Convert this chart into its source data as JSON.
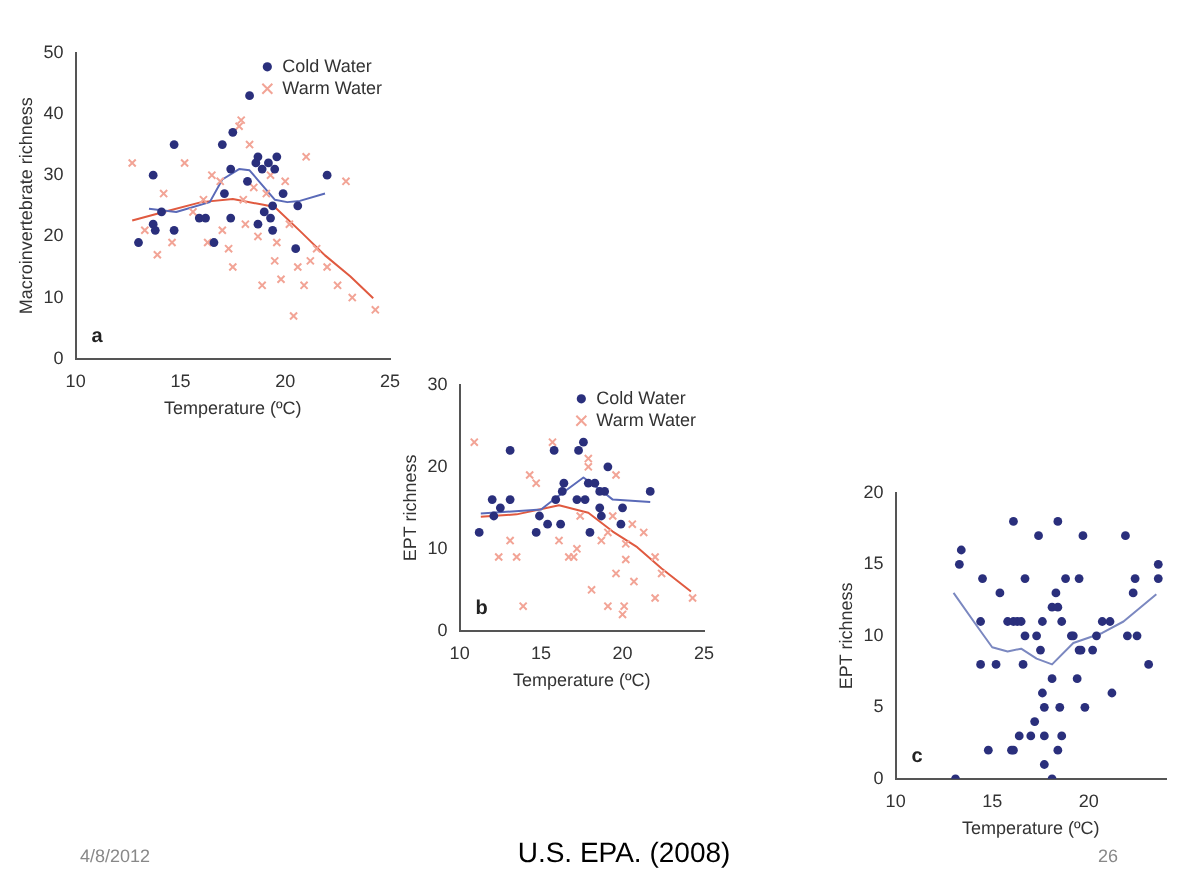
{
  "chart_data": [
    {
      "type": "scatter",
      "xlabel": "Temperature (ºC)",
      "ylabel": "Macroinvertebrate richness",
      "xlim": [
        10,
        25
      ],
      "xticks": [
        10,
        15,
        20,
        25
      ],
      "ylim": [
        0,
        50
      ],
      "yticks": [
        0,
        10,
        20,
        30,
        40,
        50
      ],
      "legend": "top right",
      "annotations": [
        "a"
      ],
      "series": [
        {
          "name": "Cold Water",
          "type": "scatter",
          "marker": "circle",
          "color": "#2a2f7c",
          "x": [
            13.0,
            13.7,
            13.7,
            13.8,
            14.1,
            14.7,
            14.7,
            15.9,
            16.2,
            16.6,
            17.0,
            17.1,
            17.4,
            17.5,
            17.4,
            18.2,
            18.3,
            18.6,
            18.7,
            18.7,
            18.9,
            19.0,
            19.2,
            19.3,
            19.4,
            19.4,
            19.5,
            19.6,
            19.9,
            20.5,
            20.6,
            22.0
          ],
          "values": [
            19,
            30,
            22,
            21,
            24,
            35,
            21,
            23,
            23,
            19,
            35,
            27,
            31,
            37,
            23,
            29,
            43,
            32,
            33,
            22,
            31,
            24,
            32,
            23,
            25,
            21,
            31,
            33,
            27,
            18,
            25,
            30
          ]
        },
        {
          "name": "Warm Water",
          "type": "scatter",
          "marker": "cross",
          "color": "#f2a496",
          "x": [
            12.7,
            13.3,
            13.9,
            14.2,
            14.6,
            15.2,
            15.6,
            16.1,
            16.3,
            16.5,
            17.0,
            17.3,
            17.5,
            17.8,
            17.9,
            18.0,
            18.3,
            18.5,
            18.7,
            18.9,
            19.1,
            19.3,
            19.5,
            19.6,
            19.8,
            20.0,
            20.2,
            20.4,
            20.6,
            20.9,
            21.2,
            21.5,
            22.0,
            22.5,
            22.9,
            23.2,
            24.3,
            21.0,
            16.9,
            18.1
          ],
          "values": [
            32,
            21,
            17,
            27,
            19,
            32,
            24,
            26,
            19,
            30,
            21,
            18,
            15,
            38,
            39,
            26,
            35,
            28,
            20,
            12,
            27,
            30,
            16,
            19,
            13,
            29,
            22,
            7,
            15,
            12,
            16,
            18,
            15,
            12,
            29,
            10,
            8,
            33,
            29,
            22
          ]
        },
        {
          "type": "line",
          "marker": "none",
          "color": "#5a6ab8",
          "x": [
            13.5,
            14.8,
            16.4,
            17.0,
            17.8,
            18.3,
            18.8,
            19.5,
            20.1,
            20.7,
            21.9
          ],
          "values": [
            24.5,
            24,
            25.6,
            29.3,
            31,
            30.8,
            28.8,
            26,
            25.6,
            25.8,
            27
          ]
        },
        {
          "type": "line",
          "marker": "none",
          "color": "#e05a40",
          "x": [
            12.7,
            14.2,
            16.0,
            17.5,
            18.9,
            19.5,
            20.7,
            21.9,
            23.1,
            24.2
          ],
          "values": [
            22.6,
            24,
            25.6,
            26.1,
            25.2,
            24.8,
            20.9,
            16.9,
            13.5,
            9.9
          ]
        }
      ]
    },
    {
      "type": "scatter",
      "xlabel": "Temperature (ºC)",
      "ylabel": "EPT richness",
      "xlim": [
        10,
        25
      ],
      "xticks": [
        10,
        15,
        20,
        25
      ],
      "ylim": [
        0,
        30
      ],
      "yticks": [
        0,
        10,
        20,
        30
      ],
      "legend": "top right",
      "annotations": [
        "b"
      ],
      "series": [
        {
          "name": "Cold Water",
          "type": "scatter",
          "marker": "circle",
          "color": "#2a2f7c",
          "x": [
            11.2,
            12.0,
            12.1,
            12.5,
            13.1,
            13.1,
            14.7,
            14.9,
            15.4,
            15.8,
            15.9,
            16.2,
            16.3,
            16.4,
            17.3,
            17.6,
            17.2,
            17.7,
            17.9,
            18.0,
            18.3,
            18.6,
            18.6,
            18.7,
            18.9,
            19.1,
            19.9,
            20.0,
            21.7
          ],
          "values": [
            12,
            16,
            14,
            15,
            22,
            16,
            12,
            14,
            13,
            22,
            16,
            13,
            17,
            18,
            22,
            23,
            16,
            16,
            18,
            12,
            18,
            17,
            15,
            14,
            17,
            20,
            13,
            15,
            17
          ]
        },
        {
          "name": "Warm Water",
          "type": "scatter",
          "marker": "cross",
          "color": "#f2a496",
          "x": [
            10.9,
            12.4,
            13.5,
            13.1,
            13.9,
            14.3,
            14.7,
            15.7,
            16.1,
            16.7,
            17.0,
            17.2,
            17.4,
            17.9,
            17.9,
            18.1,
            18.7,
            19.1,
            19.4,
            19.6,
            19.6,
            20.1,
            20.2,
            20.2,
            20.6,
            20.7,
            21.3,
            22.0,
            22.4,
            24.3,
            20.0,
            22.0,
            19.1
          ],
          "values": [
            23,
            9,
            9,
            11,
            3,
            19,
            18,
            23,
            11,
            9,
            9,
            10,
            14,
            21,
            20,
            5,
            11,
            12,
            14,
            19,
            7,
            3,
            10.6,
            8.7,
            13,
            6,
            12,
            9,
            7,
            4,
            2,
            4,
            3
          ]
        },
        {
          "type": "line",
          "marker": "none",
          "color": "#5a6ab8",
          "x": [
            11.3,
            15.0,
            15.9,
            17.6,
            18.7,
            19.4,
            21.7
          ],
          "values": [
            14.3,
            14.8,
            16.2,
            18.7,
            17.1,
            16.0,
            15.7
          ]
        },
        {
          "type": "line",
          "marker": "none",
          "color": "#e05a40",
          "x": [
            11.3,
            13.5,
            16.1,
            17.9,
            19.4,
            20.9,
            22.4,
            24.2
          ],
          "values": [
            13.9,
            14.2,
            15.3,
            14.4,
            12.1,
            10.2,
            7.6,
            4.8
          ]
        }
      ]
    },
    {
      "type": "scatter",
      "xlabel": "Temperature (ºC)",
      "ylabel": "EPT richness",
      "xlim": [
        10,
        24
      ],
      "xticks": [
        10,
        15,
        20
      ],
      "ylim": [
        0,
        20
      ],
      "yticks": [
        0,
        5,
        10,
        15,
        20
      ],
      "annotations": [
        "c",
        "4/8/2012",
        "U.S. EPA. (2008)",
        "26"
      ],
      "series": [
        {
          "type": "scatter",
          "marker": "circle",
          "color": "#2a2f7c",
          "x": [
            13.1,
            13.3,
            13.4,
            14.5,
            14.4,
            14.4,
            14.8,
            15.2,
            15.4,
            16.1,
            15.8,
            16.1,
            16.3,
            16.5,
            16.7,
            16.0,
            16.1,
            16.4,
            16.6,
            16.7,
            17.0,
            17.2,
            17.3,
            17.4,
            17.6,
            17.5,
            17.6,
            17.7,
            17.7,
            17.7,
            18.1,
            18.1,
            18.1,
            18.3,
            18.4,
            18.4,
            18.5,
            18.6,
            18.4,
            18.6,
            18.8,
            19.1,
            19.2,
            19.4,
            19.5,
            19.5,
            19.6,
            19.7,
            19.8,
            20.2,
            20.4,
            20.7,
            21.1,
            21.2,
            21.9,
            22.0,
            22.3,
            22.4,
            22.5,
            23.1,
            23.6,
            23.6
          ],
          "values": [
            0,
            15,
            16,
            14,
            11,
            8,
            2,
            8,
            13,
            18,
            11,
            11,
            11,
            11,
            10,
            2,
            2,
            3,
            8,
            14,
            3,
            4,
            10,
            17,
            11,
            9,
            6,
            3,
            1,
            5,
            7,
            12,
            0,
            13,
            12,
            18,
            5,
            11,
            2,
            3,
            14,
            10,
            10,
            7,
            14,
            9,
            9,
            17,
            5,
            9,
            10,
            11,
            11,
            6,
            17,
            10,
            13,
            14,
            10,
            8,
            15,
            14
          ]
        },
        {
          "type": "line",
          "marker": "none",
          "color": "#7b88c0",
          "x": [
            13.0,
            14.2,
            15.0,
            15.8,
            16.5,
            17.3,
            18.1,
            19.2,
            20.7,
            21.8,
            23.5
          ],
          "values": [
            13.0,
            10.7,
            9.2,
            8.9,
            9.1,
            8.4,
            8.0,
            9.5,
            10.2,
            11.0,
            12.9
          ]
        }
      ]
    }
  ]
}
